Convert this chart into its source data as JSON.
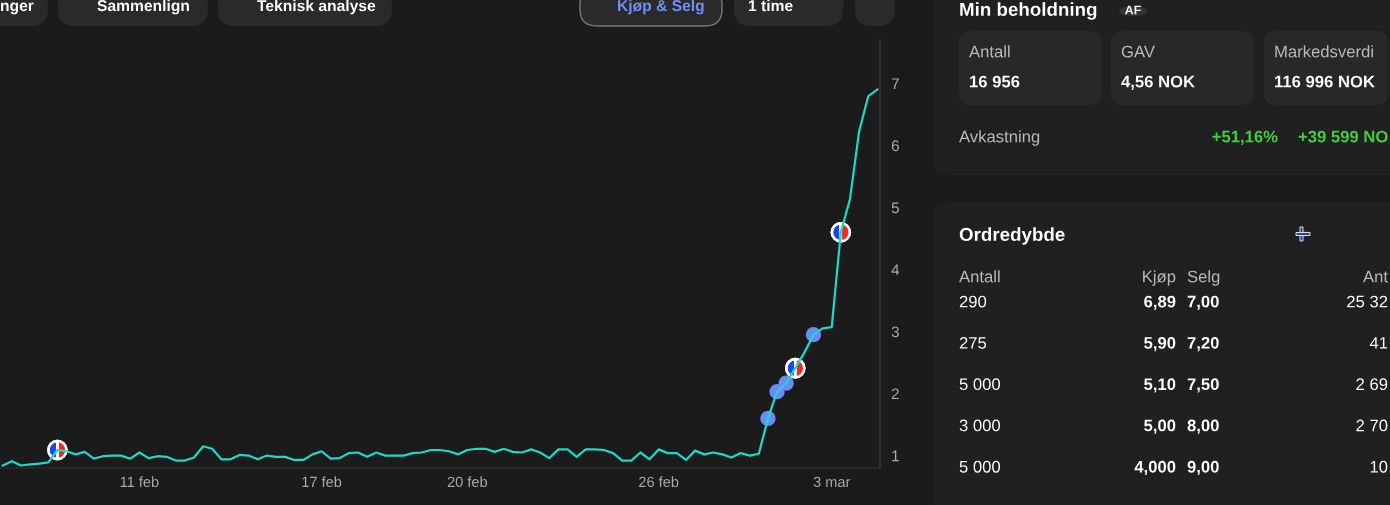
{
  "chart_data": [
    {
      "type": "other",
      "annotations": [
        "nger",
        "Sammenlign",
        "Teknisk analyse",
        "Kjøp & Selg",
        "1 time"
      ]
    },
    {
      "type": "line",
      "ylim": [
        0.8,
        7.7
      ],
      "yticks": [
        1,
        2,
        3,
        4,
        5,
        6,
        7
      ],
      "grid": false,
      "categories": [
        null,
        null,
        null,
        null,
        null,
        null,
        null,
        null,
        null,
        null,
        null,
        null,
        null,
        null,
        null,
        "11 feb",
        null,
        null,
        null,
        null,
        null,
        null,
        null,
        null,
        null,
        null,
        null,
        null,
        null,
        null,
        null,
        null,
        null,
        null,
        null,
        "17 feb",
        null,
        null,
        null,
        null,
        null,
        null,
        null,
        null,
        null,
        null,
        null,
        null,
        null,
        null,
        null,
        "20 feb",
        null,
        null,
        null,
        null,
        null,
        null,
        null,
        null,
        null,
        null,
        null,
        null,
        null,
        null,
        null,
        null,
        null,
        null,
        null,
        null,
        "26 feb",
        null,
        null,
        null,
        null,
        null,
        null,
        null,
        null,
        null,
        null,
        null,
        null,
        null,
        null,
        null,
        null,
        null,
        null,
        "3 mar",
        null,
        null,
        null,
        null,
        null
      ],
      "series": [
        {
          "type": "line",
          "color": "#1fd8c8",
          "values": [
            0.84,
            0.91,
            0.84,
            0.86,
            0.87,
            0.89,
            1.09,
            1.07,
            1.02,
            1.06,
            0.95,
            0.99,
            1.0,
            1.0,
            0.95,
            1.05,
            0.96,
            0.99,
            0.98,
            0.92,
            0.92,
            0.97,
            1.15,
            1.11,
            0.94,
            0.94,
            1.01,
            1.0,
            0.94,
            1.0,
            0.98,
            0.98,
            0.93,
            0.93,
            1.02,
            1.07,
            0.95,
            0.96,
            1.04,
            1.05,
            0.98,
            1.05,
            1.0,
            1.0,
            1.0,
            1.04,
            1.05,
            1.09,
            1.09,
            1.07,
            1.02,
            1.09,
            1.11,
            1.11,
            1.06,
            1.11,
            1.06,
            1.05,
            1.1,
            1.05,
            0.96,
            1.1,
            1.1,
            0.98,
            1.1,
            1.1,
            1.09,
            1.04,
            0.92,
            0.92,
            1.05,
            0.94,
            1.1,
            1.04,
            1.04,
            0.93,
            1.08,
            1.02,
            1.05,
            1.02,
            0.97,
            1.04,
            1.0,
            1.03,
            1.6,
            2.03,
            2.17,
            2.41,
            2.66,
            2.95,
            3.05,
            3.07,
            4.6,
            5.13,
            6.22,
            6.79,
            6.9
          ]
        },
        {
          "type": "scatter",
          "color": "#6a8cf5",
          "values": [
            null,
            null,
            null,
            null,
            null,
            null,
            null,
            null,
            null,
            null,
            null,
            null,
            null,
            null,
            null,
            null,
            null,
            null,
            null,
            null,
            null,
            null,
            null,
            null,
            null,
            null,
            null,
            null,
            null,
            null,
            null,
            null,
            null,
            null,
            null,
            null,
            null,
            null,
            null,
            null,
            null,
            null,
            null,
            null,
            null,
            null,
            null,
            null,
            null,
            null,
            null,
            null,
            null,
            null,
            null,
            null,
            null,
            null,
            null,
            null,
            null,
            null,
            null,
            null,
            null,
            null,
            null,
            null,
            null,
            null,
            null,
            null,
            null,
            null,
            null,
            null,
            null,
            null,
            null,
            null,
            null,
            null,
            null,
            null,
            1.6,
            2.03,
            2.17,
            null,
            null,
            2.95,
            null,
            null,
            null,
            null,
            null,
            null,
            null
          ]
        },
        {
          "type": "scatter",
          "color": "#1946f0",
          "values": [
            null,
            null,
            null,
            null,
            null,
            null,
            1.09,
            null,
            null,
            null,
            null,
            null,
            null,
            null,
            null,
            null,
            null,
            null,
            null,
            null,
            null,
            null,
            null,
            null,
            null,
            null,
            null,
            null,
            null,
            null,
            null,
            null,
            null,
            null,
            null,
            null,
            null,
            null,
            null,
            null,
            null,
            null,
            null,
            null,
            null,
            null,
            null,
            null,
            null,
            null,
            null,
            null,
            null,
            null,
            null,
            null,
            null,
            null,
            null,
            null,
            null,
            null,
            null,
            null,
            null,
            null,
            null,
            null,
            null,
            null,
            null,
            null,
            null,
            null,
            null,
            null,
            null,
            null,
            null,
            null,
            null,
            null,
            null,
            null,
            null,
            null,
            null,
            2.41,
            null,
            null,
            null,
            null,
            4.6,
            null,
            null,
            null,
            null
          ]
        },
        {
          "type": "scatter",
          "color": "#f0281e",
          "values": [
            null,
            null,
            null,
            null,
            null,
            null,
            1.09,
            null,
            null,
            null,
            null,
            null,
            null,
            null,
            null,
            null,
            null,
            null,
            null,
            null,
            null,
            null,
            null,
            null,
            null,
            null,
            null,
            null,
            null,
            null,
            null,
            null,
            null,
            null,
            null,
            null,
            null,
            null,
            null,
            null,
            null,
            null,
            null,
            null,
            null,
            null,
            null,
            null,
            null,
            null,
            null,
            null,
            null,
            null,
            null,
            null,
            null,
            null,
            null,
            null,
            null,
            null,
            null,
            null,
            null,
            null,
            null,
            null,
            null,
            null,
            null,
            null,
            null,
            null,
            null,
            null,
            null,
            null,
            null,
            null,
            null,
            null,
            null,
            null,
            null,
            null,
            null,
            2.41,
            null,
            null,
            null,
            null,
            4.6,
            null,
            null,
            null,
            null
          ]
        }
      ]
    },
    {
      "type": "other",
      "title": "Min beholdning",
      "annotations": [
        "AF",
        "Antall",
        "16 956",
        "GAV",
        "4,56 NOK",
        "Markedsverdi",
        "116 996 NOK",
        "Avkastning",
        "+51,16%",
        "+39 599 NO"
      ]
    },
    {
      "type": "other",
      "title": "Ordredybde",
      "annotations": [
        "Antall",
        "Kjøp",
        "Selg",
        "Ant",
        "290",
        "6,89",
        "7,00",
        "25 32",
        "275",
        "5,90",
        "7,20",
        "41",
        "5 000",
        "5,10",
        "7,50",
        "2 69",
        "3 000",
        "5,00",
        "8,00",
        "2 70",
        "5 000",
        "4,000",
        "9,00",
        "10"
      ]
    }
  ]
}
